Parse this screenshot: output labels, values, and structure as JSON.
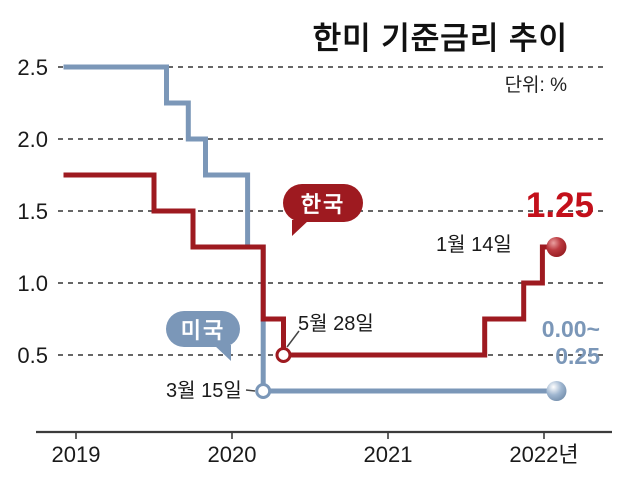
{
  "title": "한미 기준금리 추이",
  "unit_label": "단위: %",
  "labels": {
    "korea_bubble": "한국",
    "us_bubble": "미국",
    "may28": "5월 28일",
    "mar15": "3월 15일",
    "jan14": "1월 14일",
    "final_rate": "1.25",
    "us_range_top": "0.00~",
    "us_range_bottom": "0.25"
  },
  "colors": {
    "korea_line": "#9e1a20",
    "korea_accent": "#c3101b",
    "us_line": "#7b97b8",
    "axis": "#3c3c3c",
    "grid": "#333333",
    "text": "#1a1a1a"
  },
  "chart_data": {
    "type": "line",
    "title": "한미 기준금리 추이",
    "unit": "%",
    "ylim": [
      0,
      2.75
    ],
    "xlim": [
      2018.9,
      2022.35
    ],
    "grid": "horizontal-dashed",
    "legend_position": "speech-bubbles-on-plot",
    "y_ticks": [
      {
        "value": 2.5,
        "label": "2.5"
      },
      {
        "value": 2.0,
        "label": "2.0"
      },
      {
        "value": 1.5,
        "label": "1.5"
      },
      {
        "value": 1.0,
        "label": "1.0"
      },
      {
        "value": 0.5,
        "label": "0.5"
      }
    ],
    "x_ticks": [
      {
        "value": 2019,
        "label": "2019"
      },
      {
        "value": 2020,
        "label": "2020"
      },
      {
        "value": 2021,
        "label": "2021"
      },
      {
        "value": 2022,
        "label": "2022년"
      }
    ],
    "series": [
      {
        "name": "미국",
        "key": "us",
        "points": [
          [
            2018.92,
            2.5
          ],
          [
            2019.58,
            2.25
          ],
          [
            2019.72,
            2.0
          ],
          [
            2019.83,
            1.75
          ],
          [
            2020.1,
            1.25
          ],
          [
            2020.2,
            0.25
          ]
        ],
        "end_x": 2022.08,
        "final_value_label": "0.00~0.25"
      },
      {
        "name": "한국",
        "key": "korea",
        "points": [
          [
            2018.92,
            1.75
          ],
          [
            2019.5,
            1.5
          ],
          [
            2019.75,
            1.25
          ],
          [
            2020.2,
            0.75
          ],
          [
            2020.33,
            0.5
          ],
          [
            2021.62,
            0.75
          ],
          [
            2021.87,
            1.0
          ],
          [
            2021.99,
            1.25
          ]
        ],
        "end_x": 2022.08,
        "final_value_label": "1.25"
      }
    ],
    "markers": [
      {
        "series": "us",
        "x": 2020.2,
        "rate": 0.25,
        "style": "open",
        "label": "3월 15일"
      },
      {
        "series": "korea",
        "x": 2020.33,
        "rate": 0.5,
        "style": "open",
        "label": "5월 28일"
      },
      {
        "series": "korea",
        "x": 2022.08,
        "rate": 1.25,
        "style": "ball",
        "label": "1월 14일"
      },
      {
        "series": "us",
        "x": 2022.08,
        "rate": 0.25,
        "style": "ball",
        "label": "0.00~0.25"
      }
    ]
  }
}
